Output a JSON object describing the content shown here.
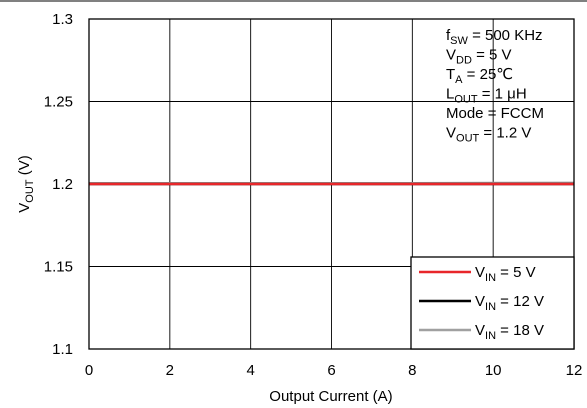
{
  "chart_data": {
    "type": "line",
    "xlabel": "Output Current (A)",
    "ylabel": {
      "main": "V",
      "sub": "OUT",
      "suffix": " (V)"
    },
    "xlim": [
      0,
      12
    ],
    "ylim": [
      1.1,
      1.3
    ],
    "x_ticks": [
      0,
      2,
      4,
      6,
      8,
      10,
      12
    ],
    "y_ticks": [
      1.1,
      1.15,
      1.2,
      1.25,
      1.3
    ],
    "y_tick_labels": [
      "1.1",
      "1.15",
      "1.2",
      "1.25",
      "1.3"
    ],
    "grid": true,
    "legend_position": "bottom-right",
    "series": [
      {
        "name": {
          "main": "V",
          "sub": "IN",
          "suffix": " = 5 V"
        },
        "color": "#e8262a",
        "x": [
          0,
          2,
          4,
          6,
          8,
          10,
          12
        ],
        "y": [
          1.2,
          1.2,
          1.2,
          1.2,
          1.2,
          1.2,
          1.2
        ]
      },
      {
        "name": {
          "main": "V",
          "sub": "IN",
          "suffix": " = 12 V"
        },
        "color": "#000000",
        "x": [
          0,
          2,
          4,
          6,
          8,
          10,
          12
        ],
        "y": [
          1.2,
          1.2,
          1.2,
          1.2,
          1.2,
          1.2,
          1.2
        ]
      },
      {
        "name": {
          "main": "V",
          "sub": "IN",
          "suffix": " = 18 V"
        },
        "color": "#a0a0a0",
        "x": [
          0,
          2,
          4,
          6,
          8,
          10,
          12
        ],
        "y": [
          1.2005,
          1.2005,
          1.2005,
          1.2005,
          1.2005,
          1.2006,
          1.2007
        ]
      }
    ],
    "annotations": [
      {
        "main": "f",
        "sub": "SW",
        "suffix": " = 500 KHz"
      },
      {
        "main": "V",
        "sub": "DD",
        "suffix": " = 5 V"
      },
      {
        "main": "T",
        "sub": "A",
        "suffix": " = 25℃"
      },
      {
        "main": "L",
        "sub": "OUT",
        "suffix": " = 1 μH"
      },
      {
        "main": "Mode = FCCM",
        "sub": "",
        "suffix": ""
      },
      {
        "main": "V",
        "sub": "OUT",
        "suffix": " = 1.2 V"
      }
    ]
  }
}
